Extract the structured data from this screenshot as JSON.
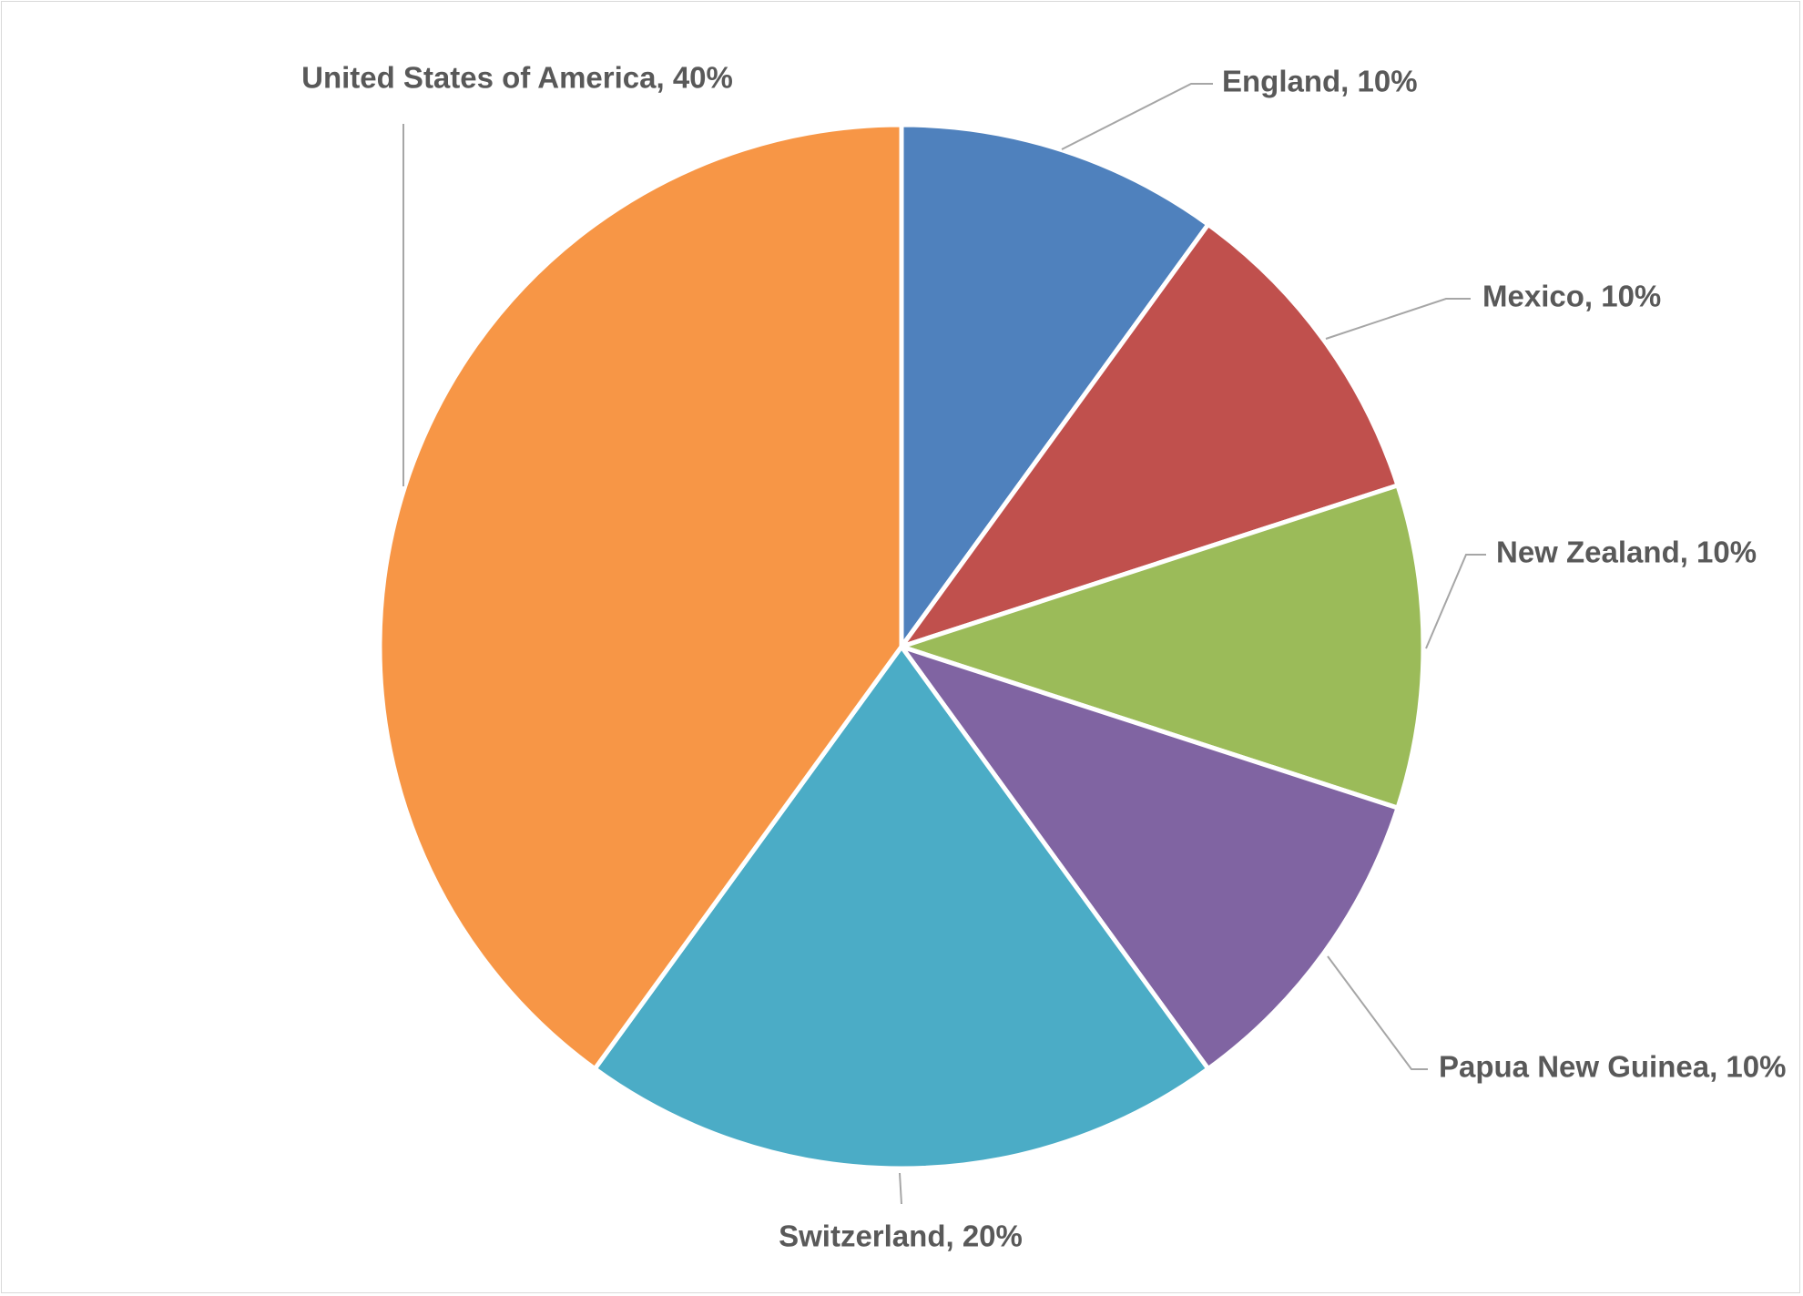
{
  "chart_data": {
    "type": "pie",
    "start_angle_deg": 0,
    "direction": "clockwise",
    "slices": [
      {
        "label": "England",
        "value": 10,
        "color": "#4f81bd",
        "data_label": "England, 10%"
      },
      {
        "label": "Mexico",
        "value": 10,
        "color": "#c0504d",
        "data_label": "Mexico, 10%"
      },
      {
        "label": "New Zealand",
        "value": 10,
        "color": "#9bbb59",
        "data_label": "New Zealand, 10%"
      },
      {
        "label": "Papua New Guinea",
        "value": 10,
        "color": "#8064a2",
        "data_label": "Papua New Guinea, 10%"
      },
      {
        "label": "Switzerland",
        "value": 20,
        "color": "#4bacc6",
        "data_label": "Switzerland, 20%"
      },
      {
        "label": "United States of America",
        "value": 40,
        "color": "#f79646",
        "data_label": "United States of America, 40%"
      }
    ],
    "legend": "none"
  }
}
